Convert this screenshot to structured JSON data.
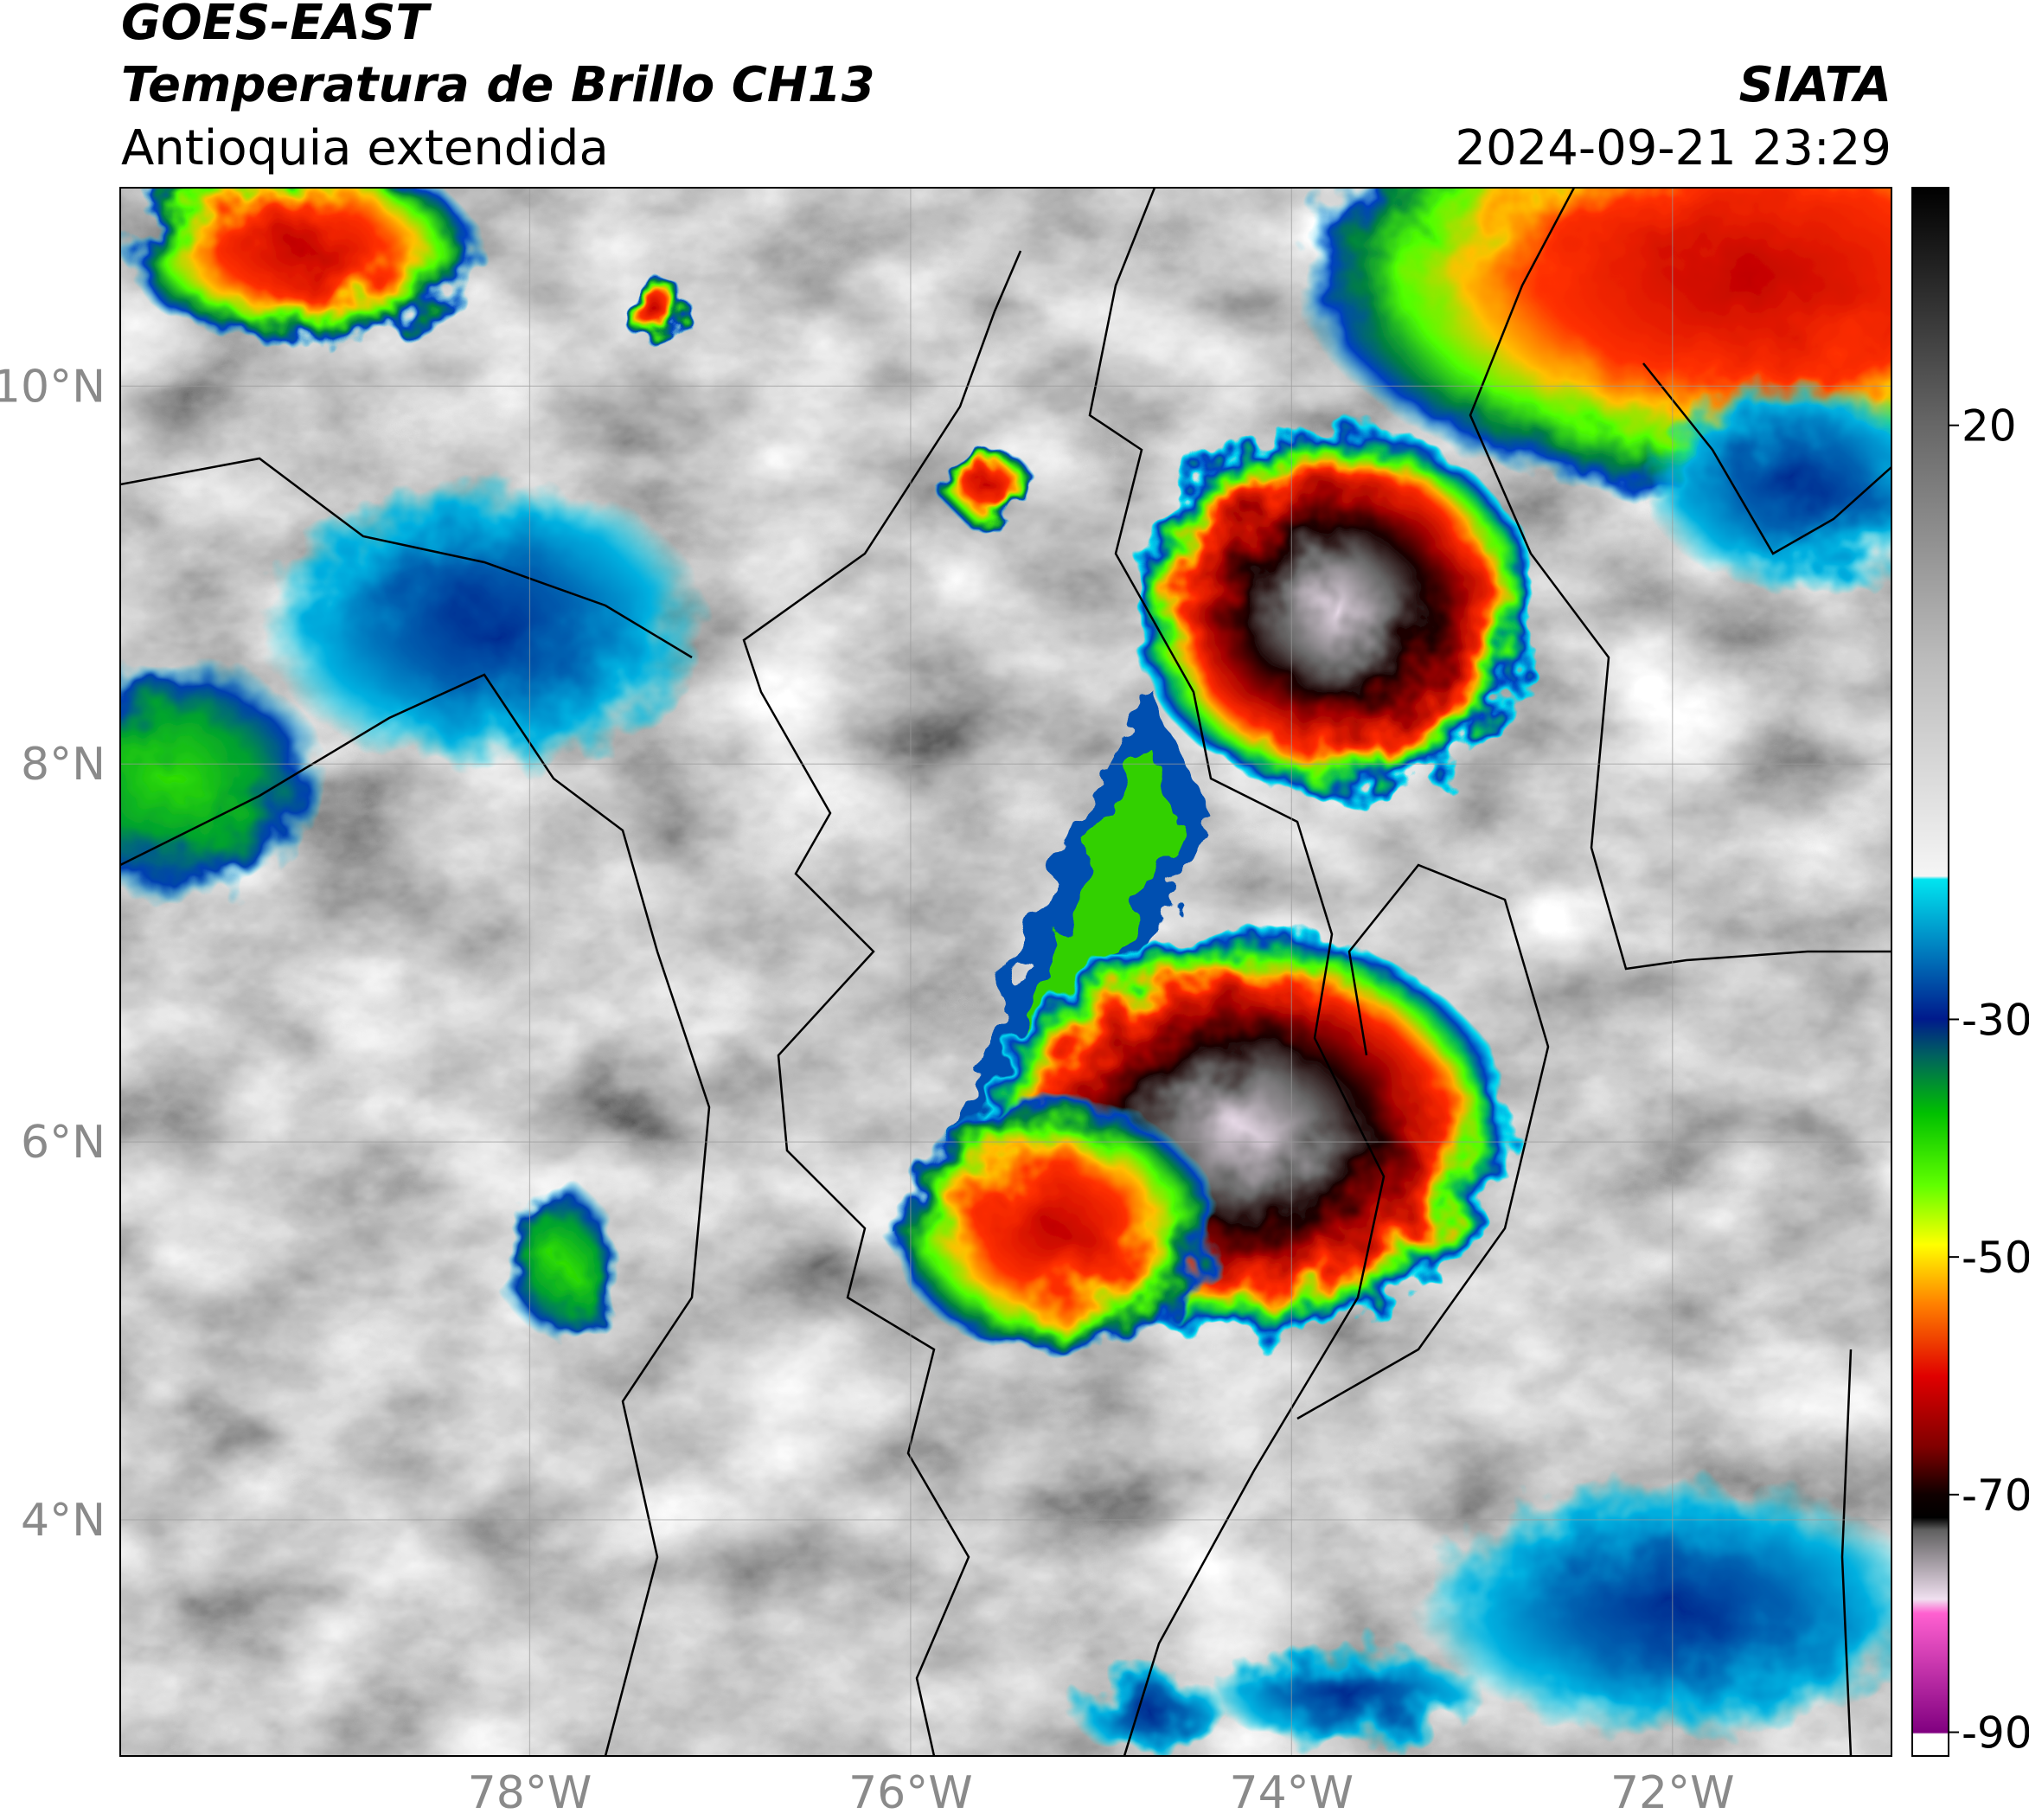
{
  "header": {
    "satellite": "GOES-EAST",
    "product": "Temperatura de Brillo CH13",
    "region": "Antioquia extendida",
    "agency": "SIATA",
    "timestamp": "2024-09-21 23:29"
  },
  "map": {
    "xlim": [
      -80.15,
      -70.85
    ],
    "ylim": [
      2.75,
      11.05
    ],
    "xticks": [
      {
        "value": -78,
        "label": "78°W"
      },
      {
        "value": -76,
        "label": "76°W"
      },
      {
        "value": -74,
        "label": "74°W"
      },
      {
        "value": -72,
        "label": "72°W"
      }
    ],
    "yticks": [
      {
        "value": 4,
        "label": "4°N"
      },
      {
        "value": 6,
        "label": "6°N"
      },
      {
        "value": 8,
        "label": "8°N"
      },
      {
        "value": 10,
        "label": "10°N"
      }
    ],
    "grid": true
  },
  "colorbar": {
    "lim": [
      -92,
      40
    ],
    "ticks": [
      -90,
      -70,
      -50,
      -30,
      20
    ]
  }
}
